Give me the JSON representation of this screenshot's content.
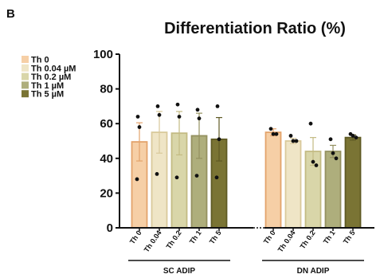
{
  "panel_label": "B",
  "chart_data": {
    "type": "bar",
    "title": "Differentiation Ratio (%)",
    "xlabel": "",
    "ylabel": "",
    "ylim": [
      0,
      100
    ],
    "yticks": [
      0,
      20,
      40,
      60,
      80,
      100
    ],
    "grid": false,
    "legend_position": "top-left",
    "legend": [
      {
        "label": "Th 0",
        "color": "#f6cfa6"
      },
      {
        "label": "Th 0.04 µM",
        "color": "#efe5c6"
      },
      {
        "label": "Th 0.2 µM",
        "color": "#d9d6a9"
      },
      {
        "label": "Th 1 µM",
        "color": "#aeae7c"
      },
      {
        "label": "Th 5 µM",
        "color": "#7a7434"
      }
    ],
    "groups": [
      {
        "label": "SC  ADIP",
        "categories": [
          "Th 0",
          "Th 0.04",
          "Th 0.2",
          "Th 1",
          "Th 5"
        ],
        "values": [
          49.5,
          55,
          54.5,
          53,
          51
        ],
        "errors": [
          11,
          12,
          12.5,
          13,
          12.5
        ],
        "points": [
          [
            64,
            58,
            28
          ],
          [
            70,
            65,
            31
          ],
          [
            71,
            64,
            29
          ],
          [
            68,
            63,
            30
          ],
          [
            70,
            51,
            29
          ]
        ]
      },
      {
        "label": "DN ADIP",
        "categories": [
          "Th 0",
          "Th 0.04",
          "Th 0.2",
          "Th 1",
          "Th 5"
        ],
        "values": [
          55,
          50,
          44,
          44,
          52
        ],
        "errors": [
          2,
          1.5,
          8,
          3.5,
          1.5
        ],
        "points": [
          [
            57,
            54,
            54
          ],
          [
            53,
            50,
            50
          ],
          [
            60,
            38,
            36
          ],
          [
            51,
            43,
            40
          ],
          [
            54,
            53,
            52
          ]
        ]
      }
    ],
    "bar_colors": [
      "#f6cfa6",
      "#efe5c6",
      "#d9d6a9",
      "#aeae7c",
      "#7a7434"
    ],
    "bar_edge_colors": [
      "#e3a36b",
      "#d9c99b",
      "#c3bb83",
      "#949160",
      "#5f5a24"
    ]
  }
}
